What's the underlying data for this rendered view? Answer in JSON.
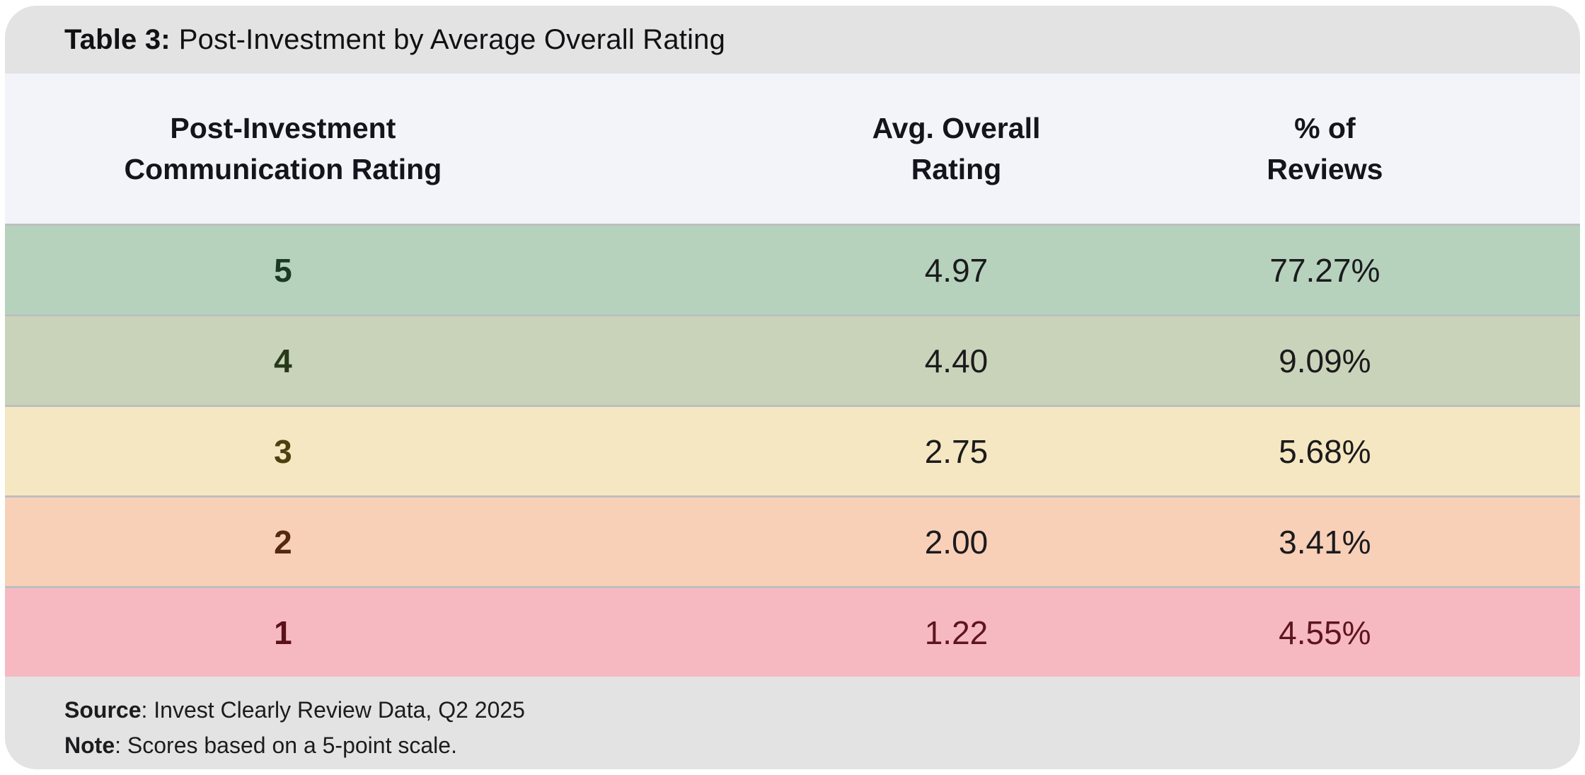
{
  "title": {
    "label": "Table 3:",
    "text": "Post-Investment by Average Overall Rating"
  },
  "header": {
    "columns": [
      "Post-Investment\nCommunication Rating",
      "Avg. Overall\nRating",
      "% of\nReviews"
    ]
  },
  "footer": {
    "source_label": "Source",
    "source_text": ": Invest Clearly Review Data, Q2 2025",
    "note_label": "Note",
    "note_text": ": Scores based on a 5-point scale."
  },
  "colors": {
    "title_bar_bg": "#e3e3e3",
    "header_bg": "#f3f4f9",
    "footer_bg": "#e3e3e3",
    "row_separator": "#bcbfc1",
    "page_bg": "#ffffff"
  },
  "chart_data": {
    "type": "table",
    "title": "Table 3: Post-Investment by Average Overall Rating",
    "columns": [
      "Post-Investment Communication Rating",
      "Avg. Overall Rating",
      "% of Reviews"
    ],
    "source": "Invest Clearly Review Data, Q2 2025",
    "note": "Scores based on a 5-point scale.",
    "rows": [
      {
        "rating": "5",
        "avg": "4.97",
        "pct": "77.27%",
        "row_color": "#b6d2bd",
        "rating_color": "#1b3a22",
        "value_color": "#1b1b1d"
      },
      {
        "rating": "4",
        "avg": "4.40",
        "pct": "9.09%",
        "row_color": "#c9d3b9",
        "rating_color": "#263a19",
        "value_color": "#1b1b1d"
      },
      {
        "rating": "3",
        "avg": "2.75",
        "pct": "5.68%",
        "row_color": "#f5e7c1",
        "rating_color": "#4c400f",
        "value_color": "#1b1b1d"
      },
      {
        "rating": "2",
        "avg": "2.00",
        "pct": "3.41%",
        "row_color": "#f8d0b8",
        "rating_color": "#54290e",
        "value_color": "#1b1b1d"
      },
      {
        "rating": "1",
        "avg": "1.22",
        "pct": "4.55%",
        "row_color": "#f7b9c1",
        "rating_color": "#5c1118",
        "value_color": "#5e1520"
      }
    ]
  }
}
